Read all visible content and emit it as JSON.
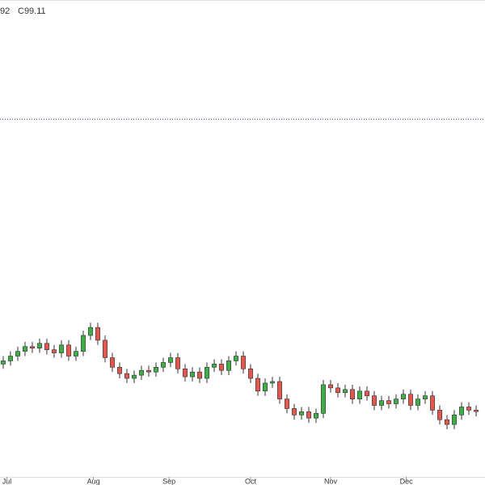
{
  "chart_data": {
    "type": "candlestick",
    "legend_texts": [
      "92",
      "C99.11"
    ],
    "open": [
      102.1,
      102.3,
      102.6,
      102.9,
      103.2,
      103.1,
      103.4,
      103.0,
      102.8,
      103.3,
      102.6,
      102.9,
      103.9,
      104.4,
      103.6,
      102.5,
      101.9,
      101.5,
      101.2,
      101.4,
      101.7,
      101.6,
      101.9,
      102.2,
      102.5,
      101.8,
      101.3,
      101.6,
      101.2,
      101.9,
      102.1,
      101.7,
      102.3,
      102.6,
      101.8,
      101.2,
      100.4,
      100.9,
      101.0,
      99.9,
      99.3,
      98.9,
      99.1,
      98.7,
      99.0,
      100.8,
      100.6,
      100.3,
      100.5,
      99.9,
      100.4,
      100.1,
      99.5,
      99.8,
      99.6,
      99.9,
      100.2,
      99.5,
      99.9,
      100.1,
      99.2,
      98.6,
      98.3,
      98.9,
      99.4,
      99.2
    ],
    "high": [
      102.6,
      102.9,
      103.2,
      103.5,
      103.5,
      103.7,
      103.7,
      103.3,
      103.6,
      103.6,
      103.2,
      104.2,
      104.7,
      104.7,
      103.9,
      102.8,
      102.2,
      101.8,
      101.7,
      102.0,
      102.0,
      102.2,
      102.5,
      102.8,
      102.8,
      102.1,
      101.9,
      101.9,
      102.2,
      102.4,
      102.4,
      102.6,
      102.9,
      102.9,
      102.1,
      101.5,
      101.2,
      101.3,
      101.3,
      100.2,
      99.6,
      99.4,
      99.4,
      99.3,
      101.1,
      101.1,
      100.9,
      100.8,
      100.8,
      100.7,
      100.7,
      100.4,
      100.1,
      100.1,
      100.2,
      100.5,
      100.5,
      100.2,
      100.4,
      100.4,
      99.5,
      98.9,
      99.2,
      99.7,
      99.7,
      99.5
    ],
    "low": [
      101.8,
      102.0,
      102.3,
      102.6,
      102.8,
      102.8,
      102.7,
      102.5,
      102.5,
      102.3,
      102.3,
      102.6,
      103.6,
      103.3,
      102.2,
      101.6,
      101.2,
      100.9,
      100.9,
      101.1,
      101.3,
      101.3,
      101.6,
      101.9,
      101.5,
      101.0,
      101.0,
      100.9,
      100.9,
      101.6,
      101.4,
      101.4,
      102.0,
      101.5,
      100.9,
      100.1,
      100.1,
      100.6,
      99.6,
      99.0,
      98.6,
      98.6,
      98.4,
      98.4,
      98.7,
      100.3,
      100.0,
      100.0,
      99.6,
      99.6,
      99.8,
      99.2,
      99.2,
      99.3,
      99.3,
      99.6,
      99.2,
      99.2,
      99.6,
      98.9,
      98.3,
      98.0,
      98.0,
      98.6,
      98.9,
      98.81
    ],
    "close": [
      102.3,
      102.6,
      102.9,
      103.2,
      103.1,
      103.4,
      103.0,
      102.8,
      103.3,
      102.6,
      102.9,
      103.9,
      104.4,
      103.6,
      102.5,
      101.9,
      101.5,
      101.2,
      101.4,
      101.7,
      101.6,
      101.9,
      102.2,
      102.5,
      101.8,
      101.3,
      101.6,
      101.2,
      101.9,
      102.1,
      101.7,
      102.3,
      102.6,
      101.8,
      101.2,
      100.4,
      100.9,
      101.0,
      99.9,
      99.3,
      98.9,
      99.1,
      98.7,
      99.0,
      100.8,
      100.6,
      100.3,
      100.5,
      99.9,
      100.4,
      100.1,
      99.5,
      99.8,
      99.6,
      99.9,
      100.2,
      99.5,
      99.9,
      100.1,
      99.2,
      98.6,
      98.3,
      98.9,
      99.4,
      99.2,
      99.11
    ],
    "up_color": "#3fae49",
    "down_color": "#e0584f",
    "ylim": [
      95,
      125
    ],
    "xlim": [
      -0.44,
      66.22
    ],
    "xticks": [
      {
        "value": 0.5,
        "label": "Jul"
      },
      {
        "value": 12.4,
        "label": "Aug"
      },
      {
        "value": 22.8,
        "label": "Sep"
      },
      {
        "value": 34,
        "label": "Oct"
      },
      {
        "value": 45,
        "label": "Nov"
      },
      {
        "value": 55.4,
        "label": "Dec"
      }
    ],
    "ref_line": 117.5,
    "ref_line_color": "#4a5bd0"
  }
}
